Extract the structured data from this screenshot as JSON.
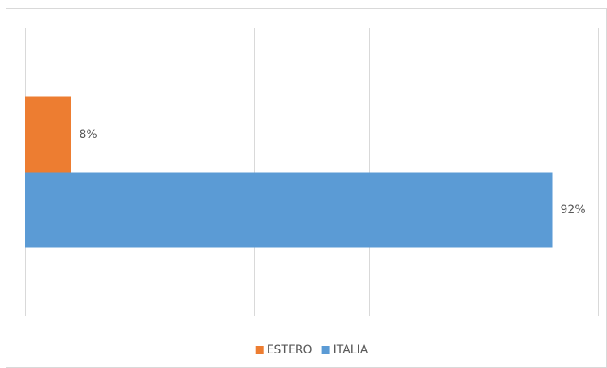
{
  "chart_data": {
    "type": "hbar",
    "categories": [
      null
    ],
    "series": [
      {
        "name": "ESTERO",
        "color": "#ED7D31",
        "values": [
          8
        ],
        "value_labels": [
          "8%"
        ]
      },
      {
        "name": "ITALIA",
        "color": "#5B9BD5",
        "values": [
          92
        ],
        "value_labels": [
          "92%"
        ]
      }
    ],
    "xlim": [
      0,
      100
    ],
    "xticks": [
      0,
      20,
      40,
      60,
      80,
      100
    ],
    "grid": true,
    "legend": "bottom"
  }
}
